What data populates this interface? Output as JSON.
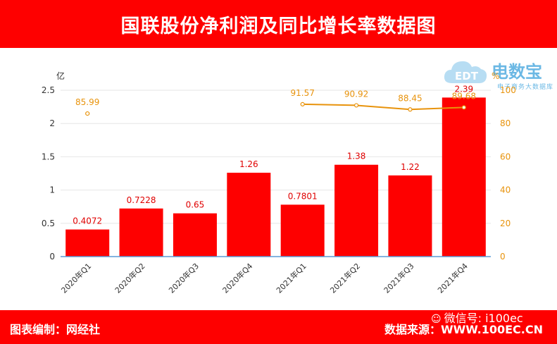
{
  "header": {
    "title": "国联股份净利润及同比增长率数据图"
  },
  "footer": {
    "left": "图表编制：网经社",
    "right": "数据来源：WWW.100EC.CN",
    "wechat": "微信号: i100ec"
  },
  "logo": {
    "text": "电数宝",
    "subtext": "电子商务大数据库",
    "badge": "EDT"
  },
  "colors": {
    "brand": "#fe0000",
    "bar": "#fe0000",
    "line": "#e8930c",
    "axis": "#5b9bd5"
  },
  "chart_data": {
    "type": "bar",
    "categories": [
      "2020年Q1",
      "2020年Q2",
      "2020年Q3",
      "2020年Q4",
      "2021年Q1",
      "2021年Q2",
      "2021年Q3",
      "2021年Q4"
    ],
    "series": [
      {
        "type": "bar",
        "axis": "left",
        "values": [
          0.4072,
          0.7228,
          0.65,
          1.26,
          0.7801,
          1.38,
          1.22,
          2.39
        ],
        "labels": [
          "0.4072",
          "0.7228",
          "0.65",
          "1.26",
          "0.7801",
          "1.38",
          "1.22",
          "2.39"
        ]
      },
      {
        "type": "line",
        "axis": "right",
        "values": [
          85.99,
          null,
          null,
          null,
          91.57,
          90.92,
          88.45,
          89.68
        ],
        "labels": [
          "85.99",
          "",
          "",
          "",
          "91.57",
          "90.92",
          "88.45",
          "89.68"
        ]
      }
    ],
    "ylabel": "亿",
    "y2label": "%",
    "ylim": [
      0,
      2.5
    ],
    "y2lim": [
      0,
      100
    ],
    "yticks": [
      "0",
      "0.5",
      "1",
      "1.5",
      "2",
      "2.5"
    ],
    "y2ticks": [
      "0",
      "20",
      "40",
      "60",
      "80",
      "100"
    ],
    "grid": true
  }
}
